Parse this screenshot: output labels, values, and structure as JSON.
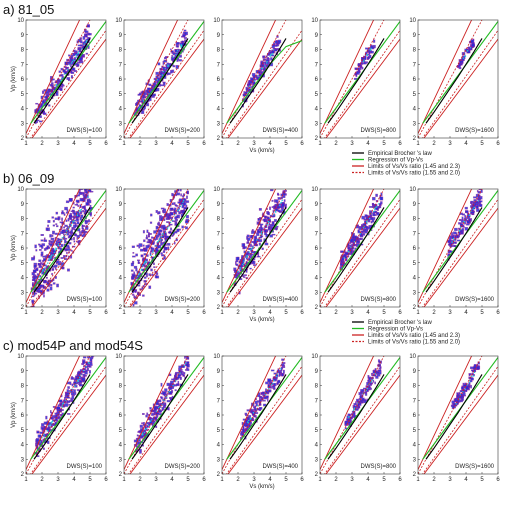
{
  "rows": [
    {
      "title": "a)  81_05"
    },
    {
      "title": "b)  06_09"
    },
    {
      "title": "c)  mod54P and mod54S"
    }
  ],
  "axes": {
    "xlabel": "Vs (km/s)",
    "ylabel": "Vp (km/s)",
    "xlim": [
      1,
      6
    ],
    "ylim": [
      2,
      10
    ],
    "xticks": [
      "1",
      "2",
      "3",
      "4",
      "5",
      "6"
    ],
    "yticks": [
      "2",
      "3",
      "4",
      "5",
      "6",
      "7",
      "8",
      "9",
      "10"
    ]
  },
  "legend": {
    "entries": [
      {
        "label": "Empirical Brocher 's law",
        "color": "#000000",
        "style": "solid"
      },
      {
        "label": "Regression of Vp-Vs",
        "color": "#22bb22",
        "style": "solid"
      },
      {
        "label": "Limits of Vs/Vs ratio (1.45 and 2.3)",
        "color": "#cc2222",
        "style": "solid"
      },
      {
        "label": "Limits of Vs/Vs ratio (1.55 and 2.0)",
        "color": "#cc2222",
        "style": "dashed"
      }
    ]
  },
  "colors": {
    "scatter": "#2a2ad8",
    "scatter_edge": "#b0208a",
    "cyan": "#20c8d8",
    "brocher": "#000000",
    "regression": "#22bb22",
    "limit": "#cc2222"
  },
  "chart_data": {
    "type": "scatter",
    "xlabel": "Vs (km/s)",
    "ylabel": "Vp (km/s)",
    "xlim": [
      1,
      6
    ],
    "ylim": [
      2,
      10
    ],
    "panels_per_row": 5,
    "panel_labels": [
      "DWS(S)=100",
      "DWS(S)=200",
      "DWS(S)=400",
      "DWS(S)=800",
      "DWS(S)=1600"
    ],
    "reference_lines": [
      {
        "name": "Empirical Brocher 's law",
        "x": [
          1.5,
          2.0,
          2.5,
          3.0,
          3.5,
          4.0,
          4.5,
          5.0
        ],
        "y": [
          3.0,
          3.75,
          4.55,
          5.35,
          6.15,
          7.0,
          7.85,
          8.75
        ]
      },
      {
        "name": "Limits of Vs/Vs ratio (1.45 and 2.3)",
        "ratios": [
          1.45,
          2.3
        ]
      },
      {
        "name": "Limits of Vs/Vs ratio (1.55 and 2.0)",
        "ratios": [
          1.55,
          2.0
        ]
      }
    ],
    "regression": [
      {
        "row": "81_05",
        "x": [
          1.3,
          6.0
        ],
        "y": [
          3.0,
          9.9
        ]
      },
      {
        "row": "81_05",
        "x": [
          1.3,
          6.0
        ],
        "y": [
          3.0,
          9.9
        ]
      },
      {
        "row": "81_05",
        "x": [
          1.3,
          4.0,
          5.0,
          6.0
        ],
        "y": [
          3.0,
          7.0,
          8.2,
          8.6
        ]
      },
      {
        "row": "81_05",
        "x": [
          1.3,
          6.0
        ],
        "y": [
          3.0,
          9.9
        ]
      },
      {
        "row": "81_05",
        "x": [
          1.3,
          6.0
        ],
        "y": [
          3.0,
          9.9
        ]
      }
    ],
    "scatter_extent": [
      [
        {
          "xmin": 1.6,
          "xmax": 5.0,
          "slope": 1.6,
          "spread": 0.9
        },
        {
          "xmin": 1.7,
          "xmax": 4.9,
          "slope": 1.6,
          "spread": 0.8
        },
        {
          "xmin": 2.3,
          "xmax": 4.6,
          "slope": 1.65,
          "spread": 0.6
        },
        {
          "xmin": 3.2,
          "xmax": 4.4,
          "slope": 1.7,
          "spread": 0.4
        },
        {
          "xmin": 3.5,
          "xmax": 4.5,
          "slope": 1.7,
          "spread": 0.3
        }
      ],
      [
        {
          "xmin": 1.4,
          "xmax": 5.1,
          "slope": 1.75,
          "spread": 2.2
        },
        {
          "xmin": 1.5,
          "xmax": 5.0,
          "slope": 1.75,
          "spread": 2.0
        },
        {
          "xmin": 1.8,
          "xmax": 5.0,
          "slope": 1.75,
          "spread": 1.4
        },
        {
          "xmin": 2.3,
          "xmax": 4.9,
          "slope": 1.75,
          "spread": 0.9
        },
        {
          "xmin": 2.9,
          "xmax": 5.0,
          "slope": 1.75,
          "spread": 0.7
        }
      ],
      [
        {
          "xmin": 1.6,
          "xmax": 5.2,
          "slope": 1.75,
          "spread": 0.9
        },
        {
          "xmin": 1.7,
          "xmax": 5.1,
          "slope": 1.75,
          "spread": 0.9
        },
        {
          "xmin": 2.2,
          "xmax": 4.9,
          "slope": 1.75,
          "spread": 0.7
        },
        {
          "xmin": 2.6,
          "xmax": 4.8,
          "slope": 1.75,
          "spread": 0.6
        },
        {
          "xmin": 3.1,
          "xmax": 4.8,
          "slope": 1.75,
          "spread": 0.5
        }
      ]
    ]
  }
}
